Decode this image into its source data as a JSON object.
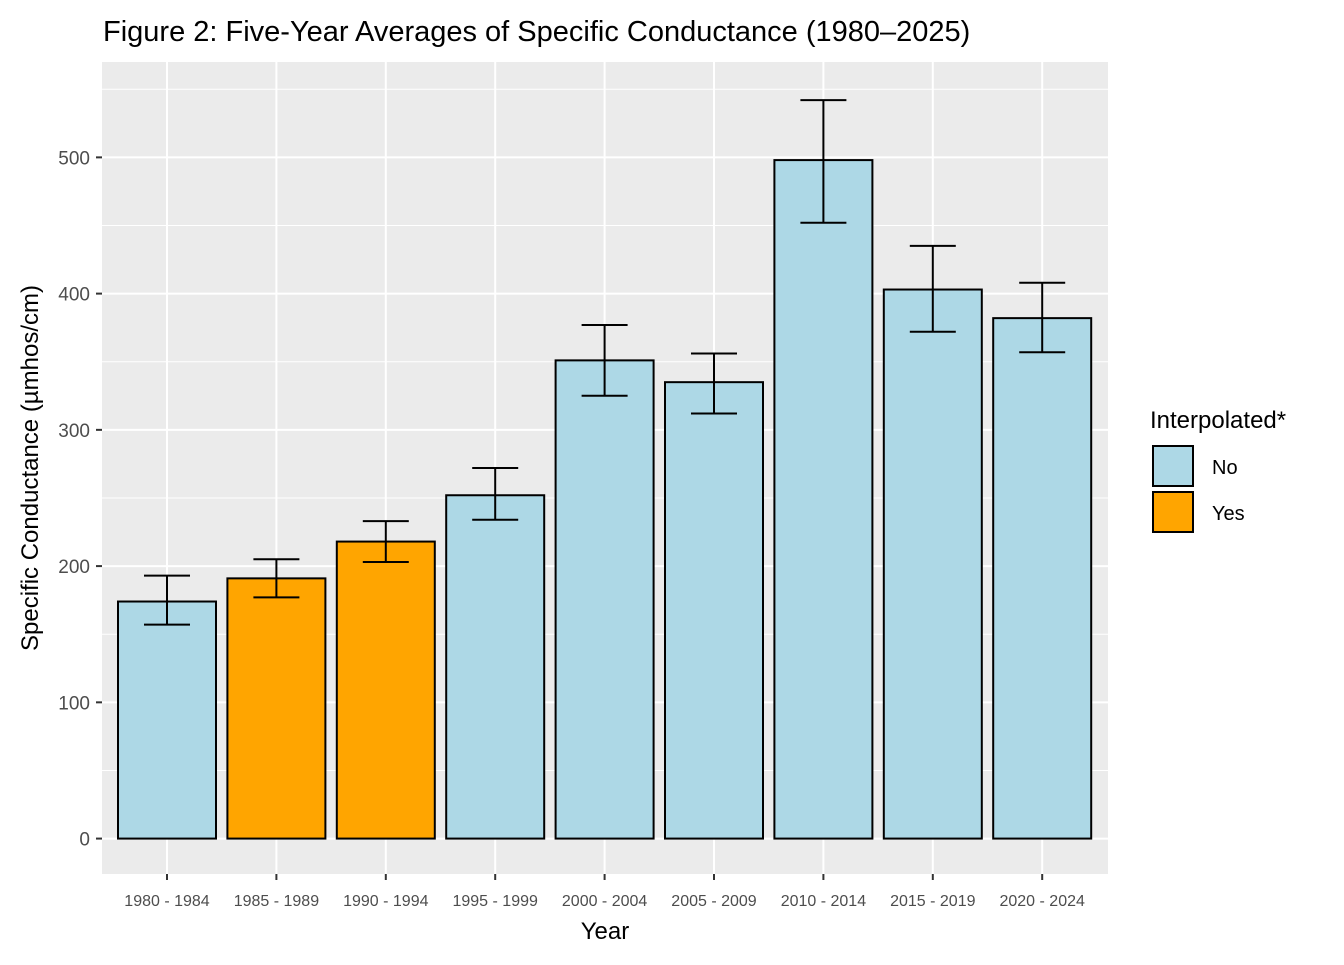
{
  "chart_data": {
    "type": "bar",
    "title": "Figure 2: Five-Year Averages of Specific Conductance (1980–2025)",
    "xlabel": "Year",
    "ylabel": "Specific Conductance (µmhos/cm)",
    "categories": [
      "1980 - 1984",
      "1985 - 1989",
      "1990 - 1994",
      "1995 - 1999",
      "2000 - 2004",
      "2005 - 2009",
      "2010 - 2014",
      "2015 - 2019",
      "2020 - 2024"
    ],
    "values": [
      174,
      191,
      218,
      252,
      351,
      335,
      498,
      403,
      382
    ],
    "error_low": [
      157,
      177,
      203,
      234,
      325,
      312,
      452,
      372,
      357
    ],
    "error_high": [
      193,
      205,
      233,
      272,
      377,
      356,
      542,
      435,
      408
    ],
    "interpolated": [
      "No",
      "Yes",
      "Yes",
      "No",
      "No",
      "No",
      "No",
      "No",
      "No"
    ],
    "ylim": [
      -26,
      570
    ],
    "yticks": [
      0,
      100,
      200,
      300,
      400,
      500
    ],
    "grid": true,
    "legend": {
      "title": "Interpolated*",
      "position": "right",
      "entries": [
        {
          "label": "No",
          "color": "#add8e6"
        },
        {
          "label": "Yes",
          "color": "#ffa500"
        }
      ]
    },
    "colors": {
      "No": "#add8e6",
      "Yes": "#ffa500",
      "panel_background": "#ebebeb",
      "gridline": "#ffffff"
    }
  }
}
